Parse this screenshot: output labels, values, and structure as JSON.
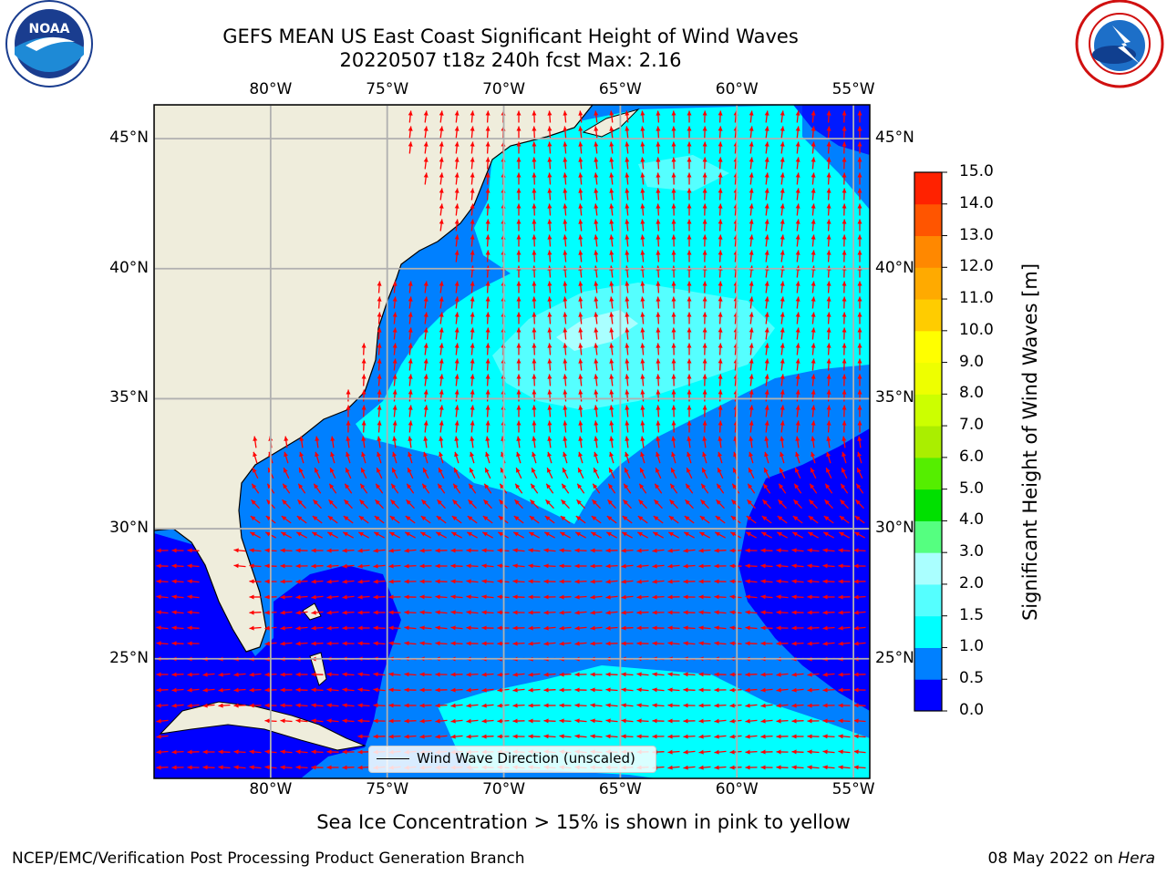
{
  "title": {
    "line1": "GEFS MEAN US East Coast Significant Height of Wind Waves",
    "line2": "20220507 t18z 240h fcst   Max: 2.16"
  },
  "logos": {
    "left": "noaa-logo",
    "left_text": "NOAA",
    "right": "nws-logo"
  },
  "map": {
    "lon_ticks": [
      "80°W",
      "75°W",
      "70°W",
      "65°W",
      "60°W",
      "55°W"
    ],
    "lat_ticks": [
      "45°N",
      "40°N",
      "35°N",
      "30°N",
      "25°N"
    ],
    "lon_values": [
      -80,
      -75,
      -70,
      -65,
      -60,
      -55
    ],
    "lat_values": [
      45,
      40,
      35,
      30,
      25
    ],
    "lon_range": [
      -85,
      -54.3
    ],
    "lat_range": [
      20.4,
      46.3
    ],
    "grid": true,
    "legend": {
      "label": "Wind Wave Direction (unscaled)",
      "placement": "bottom-center"
    },
    "arrow_color": "#ff0000",
    "land_color": "#efeddc"
  },
  "colorbar": {
    "title": "Significant Height of Wind Waves [m]",
    "ticks": [
      "0.0",
      "0.5",
      "1.0",
      "1.5",
      "2.0",
      "3.0",
      "4.0",
      "5.0",
      "6.0",
      "7.0",
      "8.0",
      "9.0",
      "10.0",
      "11.0",
      "12.0",
      "13.0",
      "14.0",
      "15.0"
    ],
    "colors": [
      "#0000ff",
      "#0080ff",
      "#00ffff",
      "#55ffff",
      "#aaffff",
      "#55ff80",
      "#00e000",
      "#55ee00",
      "#aaee00",
      "#ccff00",
      "#eeff00",
      "#ffff00",
      "#ffcc00",
      "#ffaa00",
      "#ff8800",
      "#ff5500",
      "#ff2200"
    ]
  },
  "subtitle": "Sea Ice Concentration > 15% is shown in pink to yellow",
  "footer": {
    "left": "NCEP/EMC/Verification Post Processing Product Generation Branch",
    "right_date": "08 May 2022 on ",
    "right_host": "Hera"
  }
}
